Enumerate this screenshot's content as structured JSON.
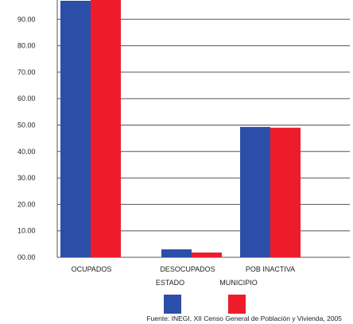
{
  "chart_data": {
    "type": "bar",
    "categories": [
      "OCUPADOS",
      "DESOCUPADOS",
      "POB INACTIVA"
    ],
    "series": [
      {
        "name": "ESTADO",
        "values": [
          97.0,
          3.0,
          49.3
        ],
        "color": "#2b4ea8"
      },
      {
        "name": "MUNICIPIO",
        "values": [
          98.0,
          1.8,
          49.0
        ],
        "color": "#ee1c2b"
      }
    ],
    "yticks": [
      "00.00",
      "10.00",
      "20.00",
      "30.00",
      "40.00",
      "50.00",
      "60.00",
      "70.00",
      "80.00",
      "90.00"
    ],
    "ylim": [
      0,
      100
    ],
    "grid": true,
    "legend_position": "bottom",
    "source": "Fuente: INEGI,  XII Censo General de Población y Vivienda, 2005"
  }
}
